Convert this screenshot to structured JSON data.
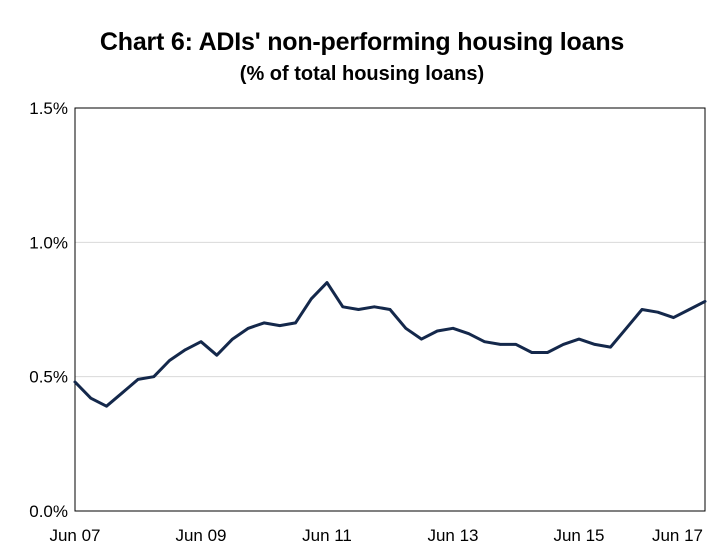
{
  "chart_data": {
    "type": "line",
    "title": "Chart 6: ADIs' non-performing housing loans",
    "subtitle": "(% of total housing loans)",
    "xlabel": "",
    "ylabel": "",
    "ylim": [
      0,
      1.5
    ],
    "yticks": [
      "0.0%",
      "0.5%",
      "1.0%",
      "1.5%"
    ],
    "xticks": [
      "Jun 07",
      "Jun 09",
      "Jun 11",
      "Jun 13",
      "Jun 15",
      "Jun 17"
    ],
    "grid": "horizontal",
    "line_color": "#14284b",
    "series": [
      {
        "x": [
          "Jun 07",
          "Sep 07",
          "Dec 07",
          "Mar 08",
          "Jun 08",
          "Sep 08",
          "Dec 08",
          "Mar 09",
          "Jun 09",
          "Sep 09",
          "Dec 09",
          "Mar 10",
          "Jun 10",
          "Sep 10",
          "Dec 10",
          "Mar 11",
          "Jun 11",
          "Sep 11",
          "Dec 11",
          "Mar 12",
          "Jun 12",
          "Sep 12",
          "Dec 12",
          "Mar 13",
          "Jun 13",
          "Sep 13",
          "Dec 13",
          "Mar 14",
          "Jun 14",
          "Sep 14",
          "Dec 14",
          "Mar 15",
          "Jun 15",
          "Sep 15",
          "Dec 15",
          "Mar 16",
          "Jun 16",
          "Sep 16",
          "Dec 16",
          "Mar 17",
          "Jun 17"
        ],
        "values": [
          0.48,
          0.42,
          0.39,
          0.44,
          0.49,
          0.5,
          0.56,
          0.6,
          0.63,
          0.58,
          0.64,
          0.68,
          0.7,
          0.69,
          0.7,
          0.79,
          0.85,
          0.76,
          0.75,
          0.76,
          0.75,
          0.68,
          0.64,
          0.67,
          0.68,
          0.66,
          0.63,
          0.62,
          0.62,
          0.59,
          0.59,
          0.62,
          0.64,
          0.62,
          0.61,
          0.68,
          0.75,
          0.74,
          0.72,
          0.75,
          0.78
        ]
      }
    ]
  }
}
